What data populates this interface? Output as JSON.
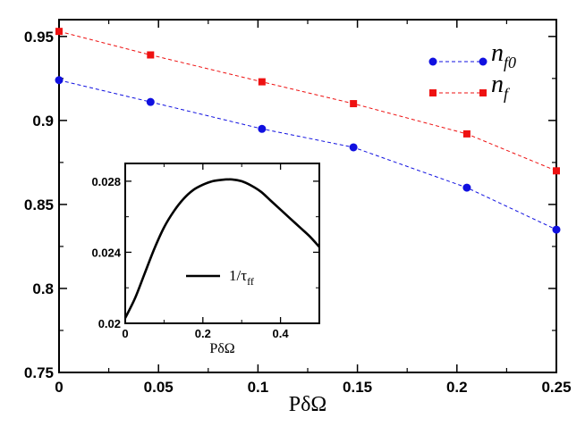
{
  "chart_data": [
    {
      "type": "line",
      "role": "main",
      "title": "",
      "xlabel": "PδΩ",
      "ylabel": "",
      "xlim": [
        0,
        0.25
      ],
      "ylim": [
        0.75,
        0.96
      ],
      "xticks": [
        0,
        0.05,
        0.1,
        0.15,
        0.2,
        0.25
      ],
      "xtick_labels": [
        "0",
        "0.05",
        "0.1",
        "0.15",
        "0.2",
        "0.25"
      ],
      "yticks": [
        0.75,
        0.8,
        0.85,
        0.9,
        0.95
      ],
      "ytick_labels": [
        "0.75",
        "0.8",
        "0.85",
        "0.9",
        "0.95"
      ],
      "grid": false,
      "legend_position": "top-right",
      "series": [
        {
          "name": "n_f0",
          "label_main": "n",
          "label_sub": "f0",
          "color": "#1010e0",
          "marker": "circle",
          "line_style": "dashed",
          "x": [
            0,
            0.046,
            0.102,
            0.148,
            0.205,
            0.25
          ],
          "y": [
            0.924,
            0.911,
            0.895,
            0.884,
            0.86,
            0.835
          ]
        },
        {
          "name": "n_f",
          "label_main": "n",
          "label_sub": "f",
          "color": "#ee1111",
          "marker": "square",
          "line_style": "dashed",
          "x": [
            0,
            0.046,
            0.102,
            0.148,
            0.205,
            0.25
          ],
          "y": [
            0.953,
            0.939,
            0.923,
            0.91,
            0.892,
            0.87
          ]
        }
      ]
    },
    {
      "type": "line",
      "role": "inset",
      "title": "",
      "xlabel": "PδΩ",
      "ylabel": "",
      "xlim": [
        0,
        0.5
      ],
      "ylim": [
        0.02,
        0.029
      ],
      "xticks": [
        0,
        0.2,
        0.4
      ],
      "xtick_labels": [
        "0",
        "0.2",
        "0.4"
      ],
      "yticks": [
        0.02,
        0.024,
        0.028
      ],
      "ytick_labels": [
        "0.02",
        "0.024",
        "0.028"
      ],
      "grid": false,
      "legend_position": "center",
      "series": [
        {
          "name": "1/τff",
          "label_main": "1/τ",
          "label_sub": "ff",
          "color": "#000000",
          "marker": "none",
          "line_style": "solid",
          "x": [
            0,
            0.025,
            0.05,
            0.075,
            0.1,
            0.125,
            0.15,
            0.175,
            0.2,
            0.225,
            0.25,
            0.275,
            0.3,
            0.325,
            0.35,
            0.375,
            0.4,
            0.425,
            0.45,
            0.475,
            0.5
          ],
          "y": [
            0.0203,
            0.0214,
            0.0228,
            0.0242,
            0.0254,
            0.0263,
            0.027,
            0.0275,
            0.0278,
            0.028,
            0.02808,
            0.0281,
            0.028,
            0.02775,
            0.0274,
            0.0269,
            0.0264,
            0.0259,
            0.0254,
            0.0249,
            0.0243
          ]
        }
      ]
    }
  ]
}
